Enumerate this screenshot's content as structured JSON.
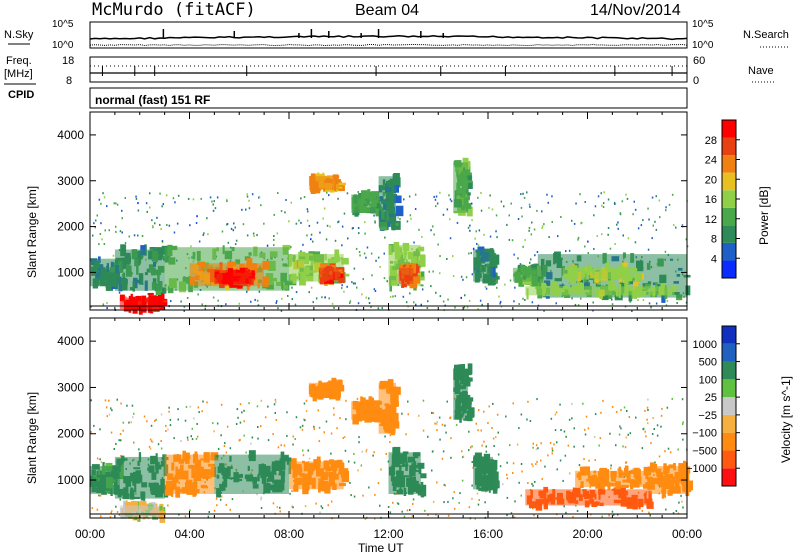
{
  "header": {
    "site_title": "McMurdo (fitACF)",
    "beam": "Beam 04",
    "date": "14/Nov/2014"
  },
  "nsky_panel": {
    "left_label": "N.Sky",
    "right_label": "N.Search",
    "left_ticks": [
      "10^5",
      "10^0"
    ],
    "right_ticks": [
      "10^5",
      "10^0"
    ]
  },
  "freq_panel": {
    "left_label_line1": "Freq.",
    "left_label_line2": "[MHz]",
    "right_label": "Nave",
    "left_ticks": [
      "18",
      "8"
    ],
    "right_ticks": [
      "60",
      "0"
    ]
  },
  "cpid_panel": {
    "label": "CPID",
    "mode_text": "normal (fast) 151 RF"
  },
  "colors": {
    "power_scale": [
      "#0a2cff",
      "#1f5fc8",
      "#2e8b57",
      "#4aa84a",
      "#8fd048",
      "#e8c020",
      "#f08010",
      "#e84010",
      "#ff0000"
    ],
    "velocity_scale": [
      "#ff1010",
      "#ff5a10",
      "#ff8c10",
      "#f5b040",
      "#c8c8c8",
      "#60c040",
      "#2e8b57",
      "#2060c0",
      "#1030c0"
    ]
  },
  "chart_data": [
    {
      "type": "heatmap",
      "title": "Power",
      "ylabel": "Slant Range [km]",
      "xlabel": "",
      "ylim": [
        180,
        4500
      ],
      "x_ticks": [
        "00:00",
        "04:00",
        "08:00",
        "12:00",
        "16:00",
        "20:00",
        "00:00"
      ],
      "y_ticks": [
        1000,
        2000,
        3000,
        4000
      ],
      "colorbar": {
        "label": "Power [dB]",
        "ticks": [
          4,
          8,
          12,
          16,
          20,
          24,
          28
        ],
        "range": [
          0,
          30
        ]
      },
      "regions": [
        {
          "t0": 1.2,
          "t1": 3.0,
          "r0": 200,
          "r1": 450,
          "v": 29
        },
        {
          "t0": 0.0,
          "t1": 1.2,
          "r0": 700,
          "r1": 1300,
          "v": 8
        },
        {
          "t0": 1.0,
          "t1": 3.0,
          "r0": 600,
          "r1": 1500,
          "v": 9
        },
        {
          "t0": 3.0,
          "t1": 8.0,
          "r0": 600,
          "r1": 1550,
          "v": 13
        },
        {
          "t0": 4.0,
          "t1": 7.0,
          "r0": 700,
          "r1": 1200,
          "v": 22
        },
        {
          "t0": 5.0,
          "t1": 6.5,
          "r0": 750,
          "r1": 1050,
          "v": 27
        },
        {
          "t0": 8.0,
          "t1": 10.2,
          "r0": 800,
          "r1": 1400,
          "v": 14
        },
        {
          "t0": 9.2,
          "t1": 10.0,
          "r0": 850,
          "r1": 1100,
          "v": 24
        },
        {
          "t0": 8.8,
          "t1": 10.0,
          "r0": 2800,
          "r1": 3100,
          "v": 20
        },
        {
          "t0": 10.5,
          "t1": 11.5,
          "r0": 2300,
          "r1": 2700,
          "v": 10
        },
        {
          "t0": 11.6,
          "t1": 12.3,
          "r0": 2000,
          "r1": 3100,
          "v": 8
        },
        {
          "t0": 12.0,
          "t1": 13.3,
          "r0": 700,
          "r1": 1600,
          "v": 14
        },
        {
          "t0": 12.4,
          "t1": 13.0,
          "r0": 750,
          "r1": 1100,
          "v": 24
        },
        {
          "t0": 14.6,
          "t1": 15.2,
          "r0": 2300,
          "r1": 3400,
          "v": 12
        },
        {
          "t0": 15.4,
          "t1": 16.2,
          "r0": 800,
          "r1": 1500,
          "v": 8
        },
        {
          "t0": 17.0,
          "t1": 18.0,
          "r0": 800,
          "r1": 1100,
          "v": 12
        },
        {
          "t0": 18.0,
          "t1": 24.0,
          "r0": 450,
          "r1": 1400,
          "v": 8
        },
        {
          "t0": 19.0,
          "t1": 22.0,
          "r0": 850,
          "r1": 1100,
          "v": 16
        },
        {
          "t0": 17.5,
          "t1": 23.5,
          "r0": 500,
          "r1": 700,
          "v": 14
        }
      ]
    },
    {
      "type": "heatmap",
      "title": "Velocity",
      "ylabel": "Slant Range [km]",
      "xlabel": "Time UT",
      "ylim": [
        180,
        4500
      ],
      "x_ticks": [
        "00:00",
        "04:00",
        "08:00",
        "12:00",
        "16:00",
        "20:00",
        "00:00"
      ],
      "y_ticks": [
        1000,
        2000,
        3000,
        4000
      ],
      "colorbar": {
        "label": "Velocity [m s^-1]",
        "ticks": [
          "1000",
          "500",
          "100",
          "25",
          "−25",
          "−100",
          "−500",
          "−1000"
        ]
      },
      "regions": [
        {
          "t0": 1.2,
          "t1": 2.8,
          "r0": 200,
          "r1": 450,
          "v": 0
        },
        {
          "t0": 0.0,
          "t1": 1.2,
          "r0": 700,
          "r1": 1300,
          "v": 150
        },
        {
          "t0": 1.0,
          "t1": 3.0,
          "r0": 600,
          "r1": 1500,
          "v": 400
        },
        {
          "t0": 3.0,
          "t1": 5.0,
          "r0": 700,
          "r1": 1550,
          "v": -300
        },
        {
          "t0": 5.0,
          "t1": 8.0,
          "r0": 700,
          "r1": 1550,
          "v": 400
        },
        {
          "t0": 8.0,
          "t1": 10.2,
          "r0": 800,
          "r1": 1400,
          "v": -400
        },
        {
          "t0": 8.8,
          "t1": 10.0,
          "r0": 2800,
          "r1": 3100,
          "v": -200
        },
        {
          "t0": 10.5,
          "t1": 11.5,
          "r0": 2300,
          "r1": 2700,
          "v": -300
        },
        {
          "t0": 11.6,
          "t1": 12.3,
          "r0": 2000,
          "r1": 3100,
          "v": -200
        },
        {
          "t0": 12.0,
          "t1": 13.3,
          "r0": 700,
          "r1": 1600,
          "v": 400
        },
        {
          "t0": 14.6,
          "t1": 15.2,
          "r0": 2300,
          "r1": 3400,
          "v": 300
        },
        {
          "t0": 15.4,
          "t1": 16.2,
          "r0": 800,
          "r1": 1500,
          "v": 300
        },
        {
          "t0": 17.5,
          "t1": 22.5,
          "r0": 450,
          "r1": 800,
          "v": -700
        },
        {
          "t0": 19.5,
          "t1": 22.5,
          "r0": 850,
          "r1": 1200,
          "v": -300
        },
        {
          "t0": 22.5,
          "t1": 24.0,
          "r0": 700,
          "r1": 1300,
          "v": -400
        }
      ]
    }
  ]
}
